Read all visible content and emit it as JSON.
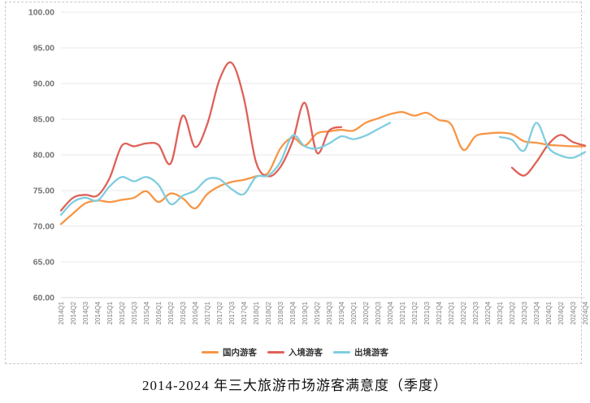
{
  "title": "2014-2024 年三大旅游市场游客满意度（季度）",
  "legend": {
    "items": [
      {
        "label": "国内游客"
      },
      {
        "label": "入境游客"
      },
      {
        "label": "出境游客"
      }
    ]
  },
  "chart_data": {
    "type": "line",
    "title": "2014-2024 年三大旅游市场游客满意度（季度）",
    "xlabel": "",
    "ylabel": "",
    "ylim": [
      60,
      100
    ],
    "y_ticks": [
      "100.00",
      "95.00",
      "90.00",
      "85.00",
      "80.00",
      "75.00",
      "70.00",
      "65.00",
      "60.00"
    ],
    "grid": "horizontal",
    "legend_position": "bottom",
    "smooth": true,
    "categories": [
      "2014Q1",
      "2014Q2",
      "2014Q3",
      "2014Q4",
      "2015Q1",
      "2015Q2",
      "2015Q3",
      "2015Q4",
      "2016Q1",
      "2016Q2",
      "2016Q3",
      "2016Q4",
      "2017Q1",
      "2017Q2",
      "2017Q3",
      "2017Q4",
      "2018Q1",
      "2018Q2",
      "2018Q3",
      "2018Q4",
      "2019Q1",
      "2019Q2",
      "2019Q3",
      "2019Q4",
      "2020Q1",
      "2020Q2",
      "2020Q3",
      "2020Q4",
      "2021Q1",
      "2021Q2",
      "2021Q3",
      "2021Q4",
      "2022Q1",
      "2022Q2",
      "2022Q3",
      "2022Q4",
      "2023Q1",
      "2023Q2",
      "2023Q3",
      "2023Q4",
      "2024Q1",
      "2024Q2",
      "2024Q3",
      "2024Q4"
    ],
    "series": [
      {
        "name": "国内游客",
        "color": "#F79646",
        "values": [
          70.3,
          71.8,
          73.2,
          73.6,
          73.4,
          73.7,
          74.0,
          74.9,
          73.4,
          74.6,
          73.9,
          72.5,
          74.5,
          75.6,
          76.2,
          76.5,
          77.0,
          77.5,
          80.9,
          82.4,
          81.3,
          83.0,
          83.3,
          83.5,
          83.4,
          84.5,
          85.1,
          85.7,
          86.0,
          85.5,
          85.9,
          84.9,
          84.3,
          80.7,
          82.6,
          83.0,
          83.1,
          82.9,
          81.9,
          81.7,
          81.4,
          81.3,
          81.2,
          81.2
        ]
      },
      {
        "name": "入境游客",
        "color": "#DF6158",
        "values": [
          72.2,
          74.0,
          74.4,
          74.3,
          76.8,
          81.3,
          81.2,
          81.6,
          81.4,
          78.8,
          85.5,
          81.1,
          84.3,
          90.5,
          92.9,
          88.0,
          79.0,
          77.0,
          78.3,
          81.9,
          87.3,
          80.3,
          83.4,
          83.9,
          null,
          null,
          null,
          null,
          null,
          null,
          null,
          null,
          null,
          null,
          null,
          null,
          null,
          78.2,
          77.1,
          79.0,
          81.5,
          82.8,
          81.8,
          81.3
        ]
      },
      {
        "name": "出境游客",
        "color": "#7FCDE0",
        "values": [
          71.6,
          73.4,
          74.0,
          73.6,
          75.6,
          76.9,
          76.3,
          76.9,
          75.8,
          73.1,
          74.3,
          75.0,
          76.6,
          76.6,
          75.2,
          74.5,
          76.9,
          77.1,
          79.0,
          82.7,
          81.2,
          80.9,
          81.6,
          82.6,
          82.2,
          82.7,
          83.6,
          84.5,
          null,
          null,
          null,
          null,
          null,
          null,
          null,
          null,
          82.5,
          82.1,
          80.6,
          84.5,
          81.0,
          79.9,
          79.6,
          80.4
        ]
      }
    ]
  }
}
